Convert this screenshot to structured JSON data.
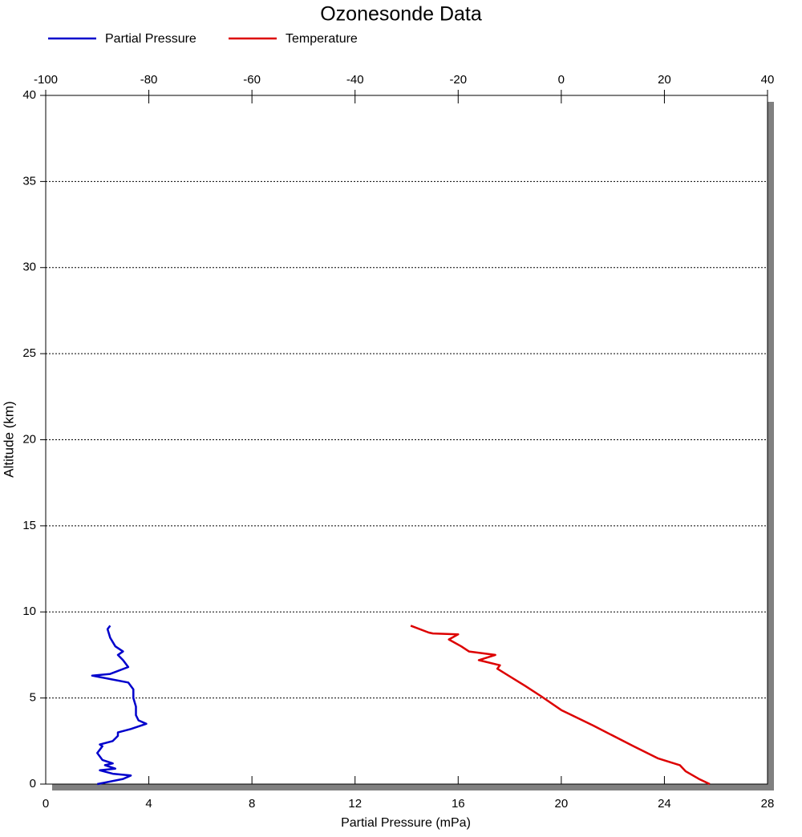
{
  "chart_data": {
    "type": "line",
    "title": "Ozonesonde Data",
    "xlabel": "Partial Pressure (mPa)",
    "ylabel": "Altitude (km)",
    "xlim": [
      0,
      28
    ],
    "xticks": [
      0,
      4,
      8,
      12,
      16,
      20,
      24,
      28
    ],
    "x2lim": [
      -100,
      40
    ],
    "x2ticks": [
      -100,
      -80,
      -60,
      -40,
      -20,
      0,
      20,
      40
    ],
    "ylim": [
      0,
      40
    ],
    "yticks": [
      0,
      5,
      10,
      15,
      20,
      25,
      30,
      35,
      40
    ],
    "grid": true,
    "legend": "top-left",
    "series": [
      {
        "name": "Partial Pressure",
        "color": "#0000cc",
        "values": [
          2.0,
          3.0,
          3.3,
          2.6,
          2.1,
          2.7,
          2.3,
          2.6,
          2.2,
          2.0,
          2.2,
          2.1,
          2.6,
          2.8,
          2.8,
          3.3,
          3.9,
          3.6,
          3.5,
          3.5,
          3.4,
          3.4,
          3.2,
          2.5,
          1.8,
          2.5,
          3.2,
          3.0,
          2.8,
          3.0,
          2.7,
          2.5,
          2.4,
          2.5
        ],
        "altitude": [
          0.0,
          0.3,
          0.5,
          0.6,
          0.8,
          0.9,
          1.1,
          1.2,
          1.4,
          1.8,
          2.2,
          2.3,
          2.5,
          2.8,
          3.0,
          3.2,
          3.5,
          3.7,
          4.0,
          4.5,
          5.0,
          5.5,
          5.9,
          6.1,
          6.3,
          6.4,
          6.8,
          7.2,
          7.5,
          7.7,
          8.0,
          8.5,
          9.0,
          9.2
        ]
      },
      {
        "name": "Temperature",
        "color": "#dd0000",
        "axis": "x2",
        "values": [
          28.8,
          26.7,
          24.1,
          23.0,
          18.7,
          14.0,
          6.2,
          0.0,
          -3.9,
          -7.0,
          -12.4,
          -11.9,
          -16.0,
          -12.8,
          -17.9,
          -19.4,
          -21.8,
          -20.0,
          -24.9,
          -25.7,
          -29.2
        ],
        "altitude": [
          0.0,
          0.3,
          0.75,
          1.1,
          1.5,
          2.2,
          3.4,
          4.3,
          5.1,
          5.7,
          6.7,
          6.9,
          7.2,
          7.5,
          7.7,
          8.0,
          8.4,
          8.7,
          8.75,
          8.8,
          9.2
        ]
      }
    ]
  }
}
